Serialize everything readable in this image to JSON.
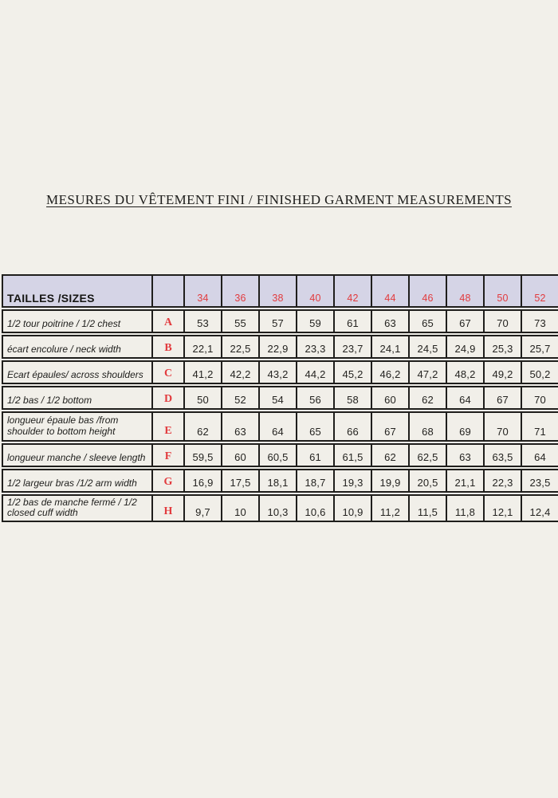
{
  "page": {
    "title": "MESURES DU VÊTEMENT FINI / FINISHED GARMENT MEASUREMENTS"
  },
  "colors": {
    "page_bg": "#f2f0ea",
    "header_bg": "#d5d4e6",
    "accent_red": "#e23b3e",
    "border": "#1f1e1c"
  },
  "table": {
    "header": {
      "label": "TAILLES /SIZES",
      "letter": "",
      "sizes": [
        "34",
        "36",
        "38",
        "40",
        "42",
        "44",
        "46",
        "48",
        "50",
        "52"
      ]
    },
    "rows": [
      {
        "label": "1/2 tour poitrine / 1/2 chest",
        "letter": "A",
        "values": [
          "53",
          "55",
          "57",
          "59",
          "61",
          "63",
          "65",
          "67",
          "70",
          "73"
        ],
        "size": "normal"
      },
      {
        "label": "écart encolure / neck width",
        "letter": "B",
        "values": [
          "22,1",
          "22,5",
          "22,9",
          "23,3",
          "23,7",
          "24,1",
          "24,5",
          "24,9",
          "25,3",
          "25,7"
        ],
        "size": "normal"
      },
      {
        "label": "Ecart épaules/ across shoulders",
        "letter": "C",
        "values": [
          "41,2",
          "42,2",
          "43,2",
          "44,2",
          "45,2",
          "46,2",
          "47,2",
          "48,2",
          "49,2",
          "50,2"
        ],
        "size": "normal"
      },
      {
        "label": "1/2 bas / 1/2 bottom",
        "letter": "D",
        "values": [
          "50",
          "52",
          "54",
          "56",
          "58",
          "60",
          "62",
          "64",
          "67",
          "70"
        ],
        "size": "normal"
      },
      {
        "label": "longueur épaule bas /from shoulder to bottom height",
        "letter": "E",
        "values": [
          "62",
          "63",
          "64",
          "65",
          "66",
          "67",
          "68",
          "69",
          "70",
          "71"
        ],
        "size": "tall-e"
      },
      {
        "label": "longueur manche / sleeve length",
        "letter": "F",
        "values": [
          "59,5",
          "60",
          "60,5",
          "61",
          "61,5",
          "62",
          "62,5",
          "63",
          "63,5",
          "64"
        ],
        "size": "normal"
      },
      {
        "label": "1/2 largeur bras /1/2 arm width",
        "letter": "G",
        "values": [
          "16,9",
          "17,5",
          "18,1",
          "18,7",
          "19,3",
          "19,9",
          "20,5",
          "21,1",
          "22,3",
          "23,5"
        ],
        "size": "normal"
      },
      {
        "label": "1/2 bas de manche fermé / 1/2 closed cuff width",
        "letter": "H",
        "values": [
          "9,7",
          "10",
          "10,3",
          "10,6",
          "10,9",
          "11,2",
          "11,5",
          "11,8",
          "12,1",
          "12,4"
        ],
        "size": "tall-h"
      }
    ]
  }
}
